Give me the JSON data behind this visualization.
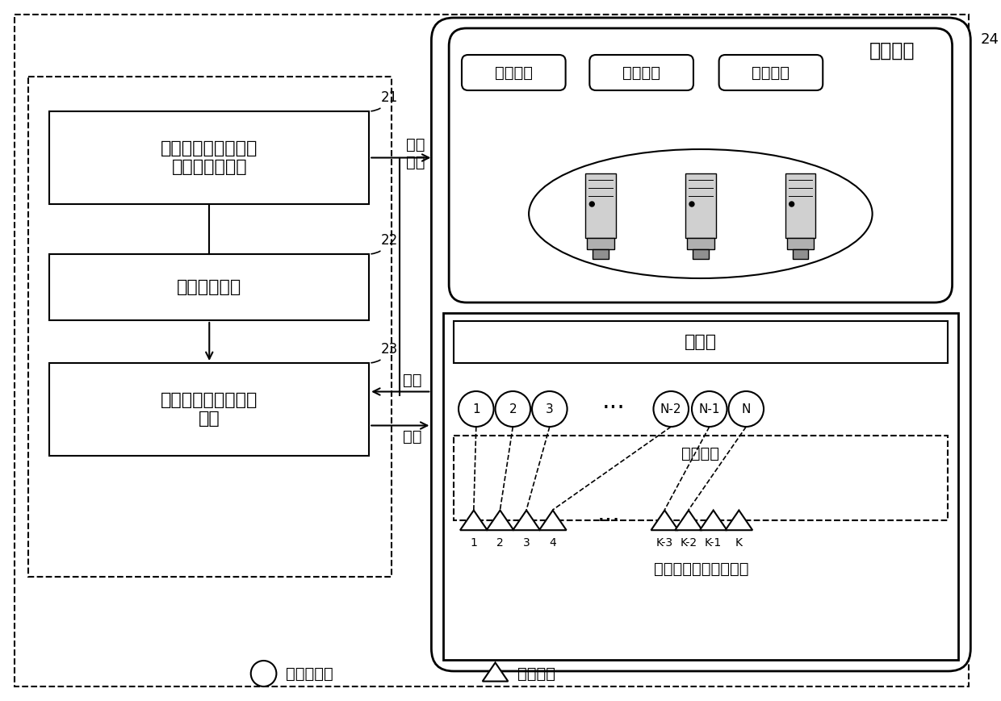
{
  "bg_color": "#ffffff",
  "box1_label": "业务请求和流量特征\n收集与分析组件",
  "box2_label": "布局算法组件",
  "box3_label": "网络拓扑与资源发现\n组件",
  "label21": "21",
  "label22": "22",
  "label23": "23",
  "label24": "24",
  "arrow_buju": "布局\n策略",
  "arrow_xiangying": "响应",
  "arrow_qingqiu": "请求",
  "deploy_label": "部署组件",
  "net_res": "网络资源",
  "calc_res": "计算资源",
  "stor_res": "存储资源",
  "optical_label": "光网络",
  "wireless_label": "无线网络",
  "access_label": "接入网与边缘计算组网",
  "legend_circle": "接入网节点",
  "legend_triangle": "用户终端",
  "circle_labels": [
    "1",
    "2",
    "3",
    "N-2",
    "N-1",
    "N"
  ],
  "triangle_labels": [
    "1",
    "2",
    "3",
    "4",
    "K-3",
    "K-2",
    "K-1",
    "K"
  ]
}
